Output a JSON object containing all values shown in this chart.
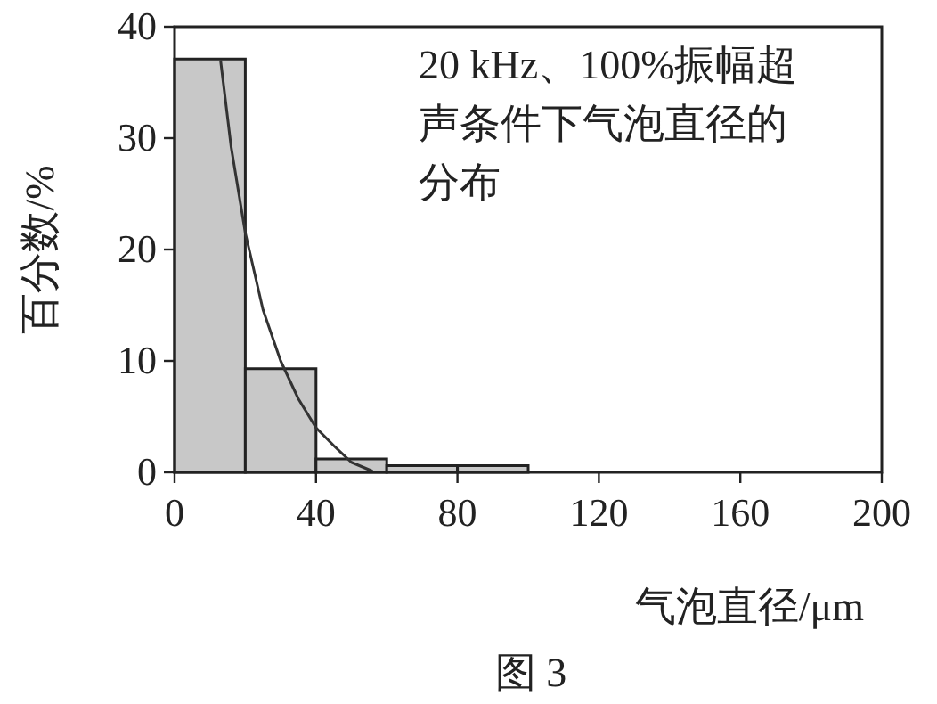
{
  "chart_data": {
    "type": "histogram",
    "xlabel": "气泡直径/μm",
    "ylabel": "百分数/%",
    "annotations": [
      "20 kHz、100%振幅超声条件下气泡直径的分布",
      "图 3"
    ],
    "xlim": [
      0,
      200
    ],
    "xticks": [
      0,
      40,
      80,
      120,
      160,
      200
    ],
    "ylim": [
      0,
      40
    ],
    "yticks": [
      0,
      10,
      20,
      30,
      40
    ],
    "series": [
      {
        "bins": [
          0,
          20,
          40,
          60,
          80,
          100
        ],
        "values": [
          37.1,
          9.3,
          1.2,
          0.6,
          0.6
        ],
        "color": "#c8c8c8"
      },
      {
        "type": "line",
        "x": [
          13,
          16,
          20,
          25,
          30,
          35,
          40,
          45,
          50,
          56
        ],
        "values": [
          37.0,
          29.2,
          21.5,
          14.6,
          10.0,
          6.6,
          4.0,
          2.4,
          0.9,
          0.1
        ],
        "color": "#333333"
      }
    ]
  }
}
